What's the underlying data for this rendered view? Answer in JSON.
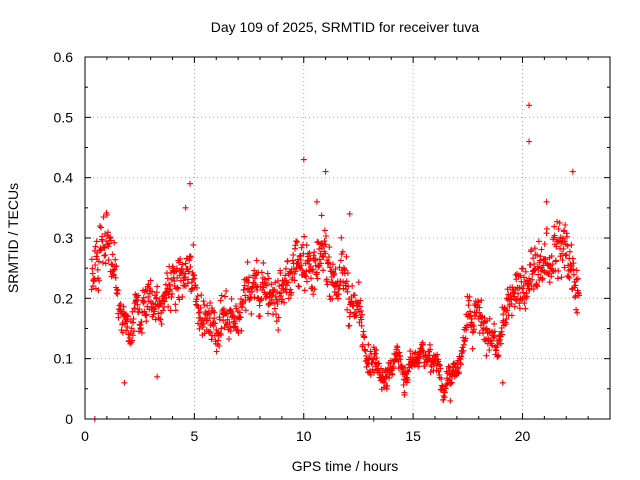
{
  "chart_data": {
    "type": "scatter",
    "title": "Day 109 of 2025, SRMTID for receiver tuva",
    "xlabel": "GPS time / hours",
    "ylabel": "SRMTID / TECUs",
    "xlim": [
      0,
      24
    ],
    "ylim": [
      0,
      0.6
    ],
    "xticks": [
      0,
      5,
      10,
      15,
      20
    ],
    "yticks": [
      0,
      0.1,
      0.2,
      0.3,
      0.4,
      0.5,
      0.6
    ],
    "grid": true,
    "marker": "+",
    "color": "#ff0000",
    "series": [
      {
        "name": "SRMTID",
        "trend_points": [
          [
            0.3,
            0.24
          ],
          [
            0.6,
            0.26
          ],
          [
            0.9,
            0.3
          ],
          [
            1.2,
            0.26
          ],
          [
            1.5,
            0.17
          ],
          [
            2.0,
            0.13
          ],
          [
            2.5,
            0.18
          ],
          [
            3.0,
            0.2
          ],
          [
            3.5,
            0.19
          ],
          [
            4.0,
            0.21
          ],
          [
            4.5,
            0.24
          ],
          [
            5.0,
            0.22
          ],
          [
            5.5,
            0.17
          ],
          [
            6.0,
            0.16
          ],
          [
            6.5,
            0.19
          ],
          [
            7.0,
            0.18
          ],
          [
            7.5,
            0.21
          ],
          [
            8.0,
            0.22
          ],
          [
            8.5,
            0.2
          ],
          [
            9.0,
            0.21
          ],
          [
            9.5,
            0.24
          ],
          [
            10.0,
            0.28
          ],
          [
            10.5,
            0.24
          ],
          [
            11.0,
            0.26
          ],
          [
            11.5,
            0.24
          ],
          [
            12.0,
            0.21
          ],
          [
            12.5,
            0.17
          ],
          [
            13.0,
            0.13
          ],
          [
            13.5,
            0.12
          ],
          [
            14.0,
            0.1
          ],
          [
            14.5,
            0.08
          ],
          [
            15.0,
            0.08
          ],
          [
            15.5,
            0.09
          ],
          [
            16.0,
            0.09
          ],
          [
            16.5,
            0.08
          ],
          [
            17.0,
            0.07
          ],
          [
            17.5,
            0.14
          ],
          [
            18.0,
            0.19
          ],
          [
            18.5,
            0.14
          ],
          [
            19.0,
            0.12
          ],
          [
            19.5,
            0.19
          ],
          [
            20.0,
            0.22
          ],
          [
            20.5,
            0.24
          ],
          [
            21.0,
            0.26
          ],
          [
            21.5,
            0.28
          ],
          [
            22.0,
            0.27
          ],
          [
            22.5,
            0.24
          ]
        ],
        "spikes": [
          [
            0.45,
            0.0
          ],
          [
            13.2,
            0.0
          ],
          [
            4.8,
            0.39
          ],
          [
            10.0,
            0.43
          ],
          [
            11.0,
            0.41
          ],
          [
            20.3,
            0.52
          ],
          [
            20.3,
            0.46
          ],
          [
            22.3,
            0.41
          ],
          [
            4.6,
            0.35
          ],
          [
            12.1,
            0.34
          ],
          [
            10.6,
            0.36
          ],
          [
            21.1,
            0.36
          ],
          [
            1.8,
            0.06
          ],
          [
            3.3,
            0.07
          ],
          [
            14.6,
            0.04
          ],
          [
            16.7,
            0.03
          ],
          [
            19.1,
            0.06
          ]
        ],
        "x_range": [
          0.3,
          22.6
        ],
        "samples_per_hour": 60
      }
    ]
  }
}
